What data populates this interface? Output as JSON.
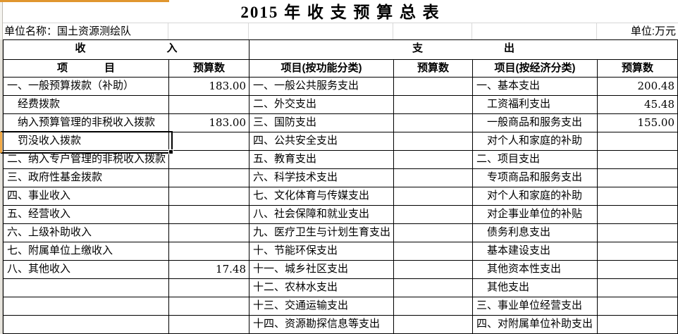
{
  "colors": {
    "accent_orange": "#e0962f",
    "row_highlight_orange": "#f3aa47",
    "selection_border": "#000000",
    "gridline_grey": "#d9d9d9"
  },
  "title": "2015 年 收 支 预 算 总 表",
  "unit_row": {
    "unit_name": "单位名称：国土资源测绘队",
    "unit_label": "单位:万元"
  },
  "section_headers": {
    "income": "收入",
    "expense": "支出"
  },
  "column_headers": {
    "income_item": "项目",
    "income_budget": "预算数",
    "func_item": "项目(按功能分类)",
    "func_budget": "预算数",
    "econ_item": "项目(按经济分类)",
    "econ_budget": "预算数"
  },
  "selection": {
    "selected_cell": "罚没收入拨款",
    "selected_row_index": 4
  },
  "rows": [
    {
      "income_item": "一、一般预算拨款（补助）",
      "income_budget": "183.00",
      "func_item": "一、一般公共服务支出",
      "func_budget": "",
      "econ_item": "一、基本支出",
      "econ_budget": "200.48"
    },
    {
      "income_item": "　经费拨款",
      "income_budget": "",
      "func_item": "二、外交支出",
      "func_budget": "",
      "econ_item": "　工资福利支出",
      "econ_budget": "45.48"
    },
    {
      "income_item": "　纳入预算管理的非税收入拨款",
      "income_budget": "183.00",
      "func_item": "三、国防支出",
      "func_budget": "",
      "econ_item": "　一般商品和服务支出",
      "econ_budget": "155.00"
    },
    {
      "income_item": "　罚没收入拨款",
      "income_budget": "",
      "func_item": "四、公共安全支出",
      "func_budget": "",
      "econ_item": "　对个人和家庭的补助",
      "econ_budget": ""
    },
    {
      "income_item": "二、纳入专户管理的非税收入拨款",
      "income_budget": "",
      "func_item": "五、教育支出",
      "func_budget": "",
      "econ_item": "二、项目支出",
      "econ_budget": ""
    },
    {
      "income_item": "三、政府性基金拨款",
      "income_budget": "",
      "func_item": "六、科学技术支出",
      "func_budget": "",
      "econ_item": "　专项商品和服务支出",
      "econ_budget": ""
    },
    {
      "income_item": "四、事业收入",
      "income_budget": "",
      "func_item": "七、文化体育与传媒支出",
      "func_budget": "",
      "econ_item": "　对个人和家庭的补助",
      "econ_budget": ""
    },
    {
      "income_item": "五、经营收入",
      "income_budget": "",
      "func_item": "八、社会保障和就业支出",
      "func_budget": "",
      "econ_item": "　对企事业单位的补贴",
      "econ_budget": ""
    },
    {
      "income_item": "六、上级补助收入",
      "income_budget": "",
      "func_item": "九、医疗卫生与计划生育支出",
      "func_budget": "",
      "econ_item": "　债务利息支出",
      "econ_budget": ""
    },
    {
      "income_item": "七、附属单位上缴收入",
      "income_budget": "",
      "func_item": "十、节能环保支出",
      "func_budget": "",
      "econ_item": "　基本建设支出",
      "econ_budget": ""
    },
    {
      "income_item": "八、其他收入",
      "income_budget": "17.48",
      "func_item": "十一、城乡社区支出",
      "func_budget": "",
      "econ_item": "　其他资本性支出",
      "econ_budget": ""
    },
    {
      "income_item": "",
      "income_budget": "",
      "func_item": "十二、农林水支出",
      "func_budget": "",
      "econ_item": "　其他支出",
      "econ_budget": ""
    },
    {
      "income_item": "",
      "income_budget": "",
      "func_item": "十三、交通运输支出",
      "func_budget": "",
      "econ_item": "三、事业单位经营支出",
      "econ_budget": ""
    },
    {
      "income_item": "",
      "income_budget": "",
      "func_item": "十四、资源勘探信息等支出",
      "func_budget": "",
      "econ_item": "四、对附属单位补助支出",
      "econ_budget": ""
    }
  ]
}
